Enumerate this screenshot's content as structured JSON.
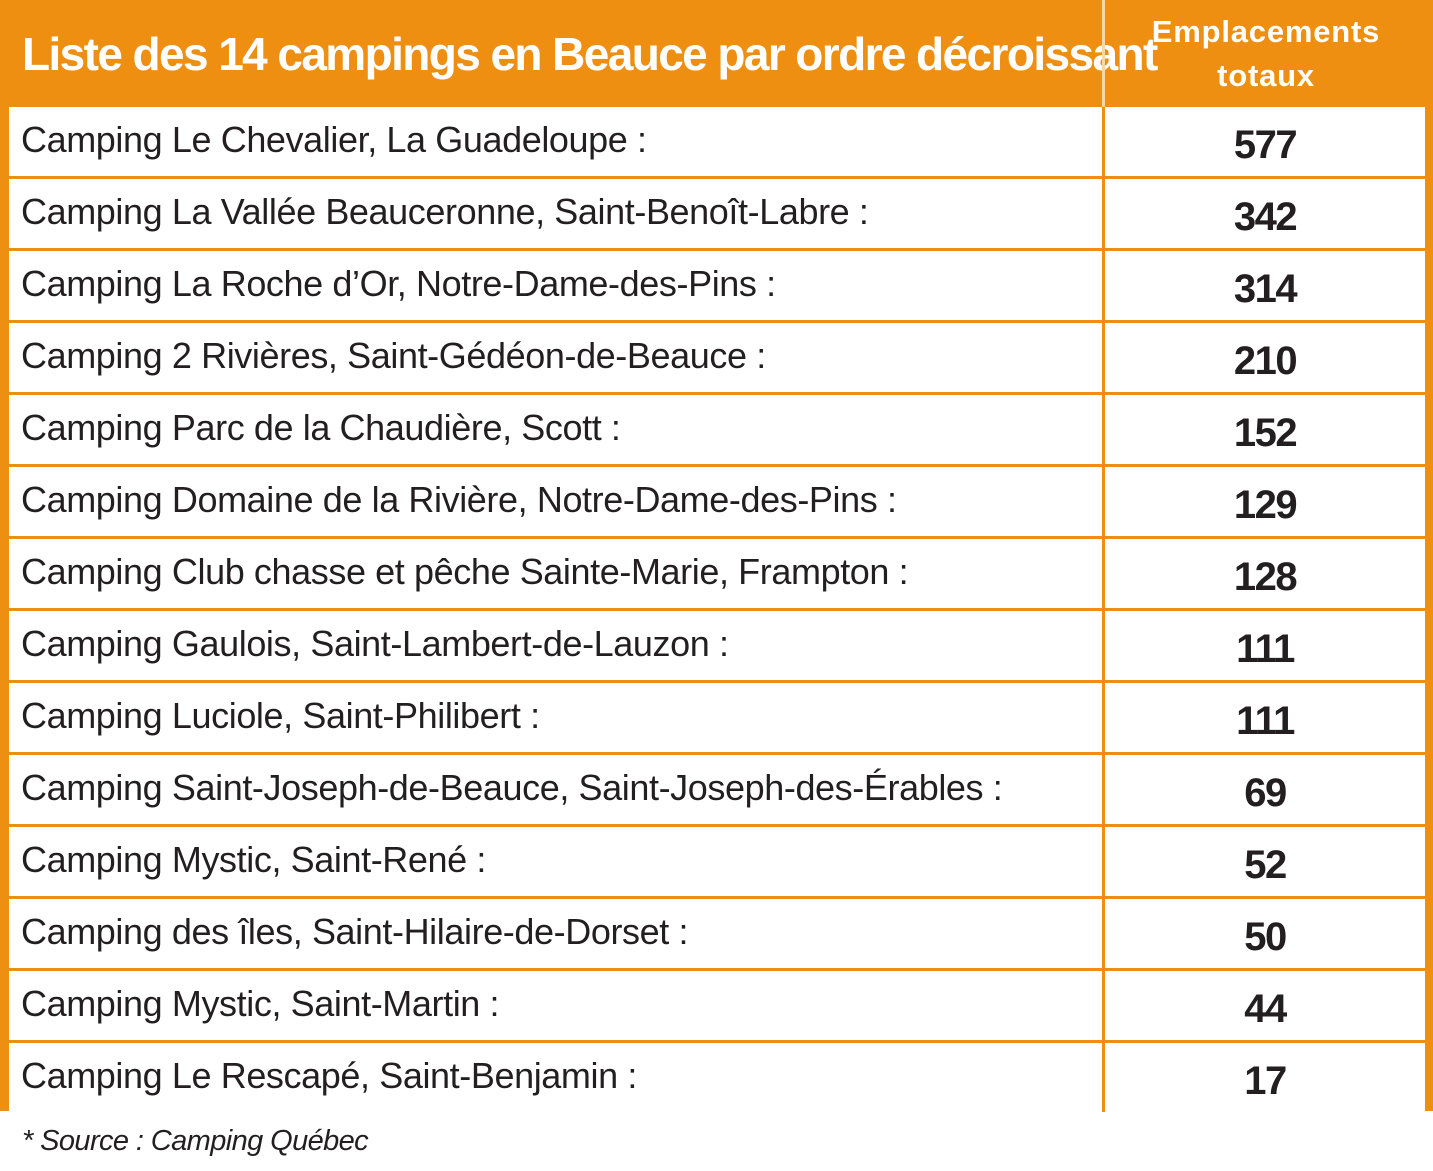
{
  "header": {
    "title": "Liste des 14 campings en Beauce par ordre décroissant",
    "column_line1": "Emplacements",
    "column_line2": "totaux"
  },
  "rows": [
    {
      "name": "Camping Le Chevalier, La Guadeloupe :",
      "value": "577"
    },
    {
      "name": "Camping La Vallée Beauceronne, Saint-Benoît-Labre :",
      "value": "342"
    },
    {
      "name": "Camping La Roche d’Or, Notre-Dame-des-Pins :",
      "value": "314"
    },
    {
      "name": "Camping 2 Rivières, Saint-Gédéon-de-Beauce :",
      "value": "210"
    },
    {
      "name": "Camping Parc de la Chaudière, Scott :",
      "value": "152"
    },
    {
      "name": "Camping Domaine de la Rivière, Notre-Dame-des-Pins :",
      "value": "129"
    },
    {
      "name": "Camping Club chasse et pêche Sainte-Marie, Frampton :",
      "value": "128"
    },
    {
      "name": "Camping Gaulois, Saint-Lambert-de-Lauzon :",
      "value": "111"
    },
    {
      "name": "Camping Luciole, Saint-Philibert :",
      "value": "111"
    },
    {
      "name": "Camping Saint-Joseph-de-Beauce, Saint-Joseph-des-Érables :",
      "value": "69"
    },
    {
      "name": "Camping Mystic, Saint-René :",
      "value": "52"
    },
    {
      "name": "Camping des îles, Saint-Hilaire-de-Dorset :",
      "value": "50"
    },
    {
      "name": "Camping Mystic, Saint-Martin :",
      "value": "44"
    },
    {
      "name": "Camping Le Rescapé, Saint-Benjamin :",
      "value": "17"
    }
  ],
  "source": "* Source : Camping Québec",
  "colors": {
    "accent": "#ee8f12",
    "text": "#231f20",
    "header_text": "#ffffff"
  }
}
